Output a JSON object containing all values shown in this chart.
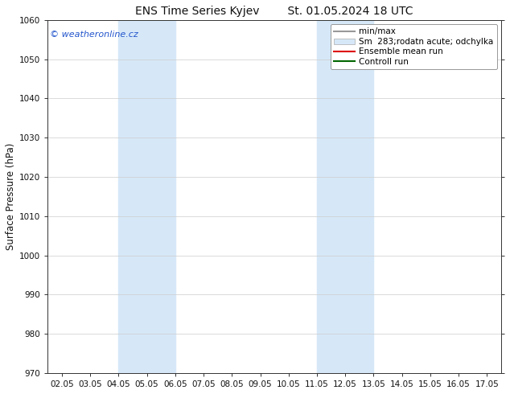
{
  "title_left": "ENS Time Series Kyjev",
  "title_right": "St. 01.05.2024 18 UTC",
  "ylabel": "Surface Pressure (hPa)",
  "ylim": [
    970,
    1060
  ],
  "yticks": [
    970,
    980,
    990,
    1000,
    1010,
    1020,
    1030,
    1040,
    1050,
    1060
  ],
  "xtick_labels": [
    "02.05",
    "03.05",
    "04.05",
    "05.05",
    "06.05",
    "07.05",
    "08.05",
    "09.05",
    "10.05",
    "11.05",
    "12.05",
    "13.05",
    "14.05",
    "15.05",
    "16.05",
    "17.05"
  ],
  "watermark": "© weatheronline.cz",
  "watermark_color": "#2255cc",
  "background_color": "#ffffff",
  "plot_bg_color": "#ffffff",
  "shaded_regions": [
    {
      "xstart": 2,
      "xend": 4,
      "color": "#d6e8f8"
    },
    {
      "xstart": 9,
      "xend": 11,
      "color": "#d6e8f8"
    }
  ],
  "legend_entries": [
    {
      "label": "min/max",
      "type": "line",
      "color": "#999999",
      "lw": 1.5
    },
    {
      "label": "Sm  283;rodatn acute; odchylka",
      "type": "patch",
      "color": "#d6e8f8",
      "edgecolor": "#aaaaaa"
    },
    {
      "label": "Ensemble mean run",
      "type": "line",
      "color": "#dd0000",
      "lw": 1.5
    },
    {
      "label": "Controll run",
      "type": "line",
      "color": "#006600",
      "lw": 1.5
    }
  ],
  "title_fontsize": 10,
  "tick_fontsize": 7.5,
  "ylabel_fontsize": 8.5,
  "watermark_fontsize": 8,
  "legend_fontsize": 7.5
}
